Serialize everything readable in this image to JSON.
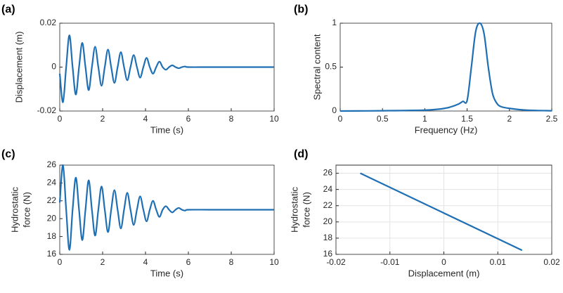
{
  "chart_data": [
    {
      "type": "line",
      "panel_label": "(a)",
      "xlabel": "Time (s)",
      "ylabel": "Displacement (m)",
      "color": "#1f6fb4",
      "grid": false,
      "xlim": [
        0,
        10
      ],
      "ylim": [
        -0.02,
        0.02
      ],
      "xticks": [
        0,
        2,
        4,
        6,
        8,
        10
      ],
      "yticks": [
        -0.02,
        0,
        0.02
      ],
      "x": [
        0,
        0.15,
        0.3,
        0.45,
        0.6,
        0.75,
        0.9,
        1.05,
        1.2,
        1.35,
        1.5,
        1.65,
        1.8,
        1.95,
        2.1,
        2.25,
        2.4,
        2.55,
        2.7,
        2.85,
        3,
        3.15,
        3.3,
        3.45,
        3.6,
        3.75,
        3.9,
        4.05,
        4.2,
        4.35,
        4.5,
        4.65,
        4.8,
        4.95,
        5.1,
        5.25,
        5.4,
        5.55,
        5.7,
        5.85,
        6,
        7,
        8,
        9,
        10
      ],
      "values": [
        -0.003,
        -0.016,
        0,
        0.0145,
        0,
        -0.0125,
        0,
        0.011,
        0,
        -0.0105,
        0,
        0.0093,
        0,
        -0.0085,
        0,
        0.008,
        0,
        -0.0072,
        0,
        0.0068,
        0,
        -0.006,
        0,
        0.0055,
        0,
        -0.0048,
        0,
        0.0042,
        0,
        -0.003,
        0,
        0.0025,
        0,
        -0.0012,
        0,
        0.0008,
        0,
        -0.0005,
        0,
        0.0003,
        0,
        0,
        0,
        0,
        0
      ]
    },
    {
      "type": "line",
      "panel_label": "(b)",
      "xlabel": "Frequency (Hz)",
      "ylabel": "Spectral content",
      "color": "#1f6fb4",
      "grid": false,
      "xlim": [
        0,
        2.5
      ],
      "ylim": [
        0,
        1
      ],
      "xticks": [
        0,
        0.5,
        1,
        1.5,
        2,
        2.5
      ],
      "yticks": [
        0,
        0.5,
        1
      ],
      "x": [
        0,
        0.5,
        1,
        1.2,
        1.3,
        1.4,
        1.45,
        1.5,
        1.55,
        1.6,
        1.65,
        1.7,
        1.75,
        1.8,
        1.85,
        1.9,
        2,
        2.2,
        2.5
      ],
      "values": [
        0,
        0.003,
        0.01,
        0.025,
        0.045,
        0.08,
        0.11,
        0.12,
        0.5,
        0.9,
        1,
        0.88,
        0.5,
        0.2,
        0.09,
        0.05,
        0.03,
        0.01,
        0.003
      ]
    },
    {
      "type": "line",
      "panel_label": "(c)",
      "xlabel": "Time (s)",
      "ylabel": [
        "Hydrostatic",
        "force (N)"
      ],
      "color": "#1f6fb4",
      "grid": false,
      "xlim": [
        0,
        10
      ],
      "ylim": [
        16,
        26
      ],
      "xticks": [
        0,
        2,
        4,
        6,
        8,
        10
      ],
      "yticks": [
        16,
        18,
        20,
        22,
        24,
        26
      ],
      "x": [
        0,
        0.15,
        0.3,
        0.45,
        0.6,
        0.75,
        0.9,
        1.05,
        1.2,
        1.35,
        1.5,
        1.65,
        1.8,
        1.95,
        2.1,
        2.25,
        2.4,
        2.55,
        2.7,
        2.85,
        3,
        3.15,
        3.3,
        3.45,
        3.6,
        3.75,
        3.9,
        4.05,
        4.2,
        4.35,
        4.5,
        4.65,
        4.8,
        4.95,
        5.1,
        5.25,
        5.4,
        5.55,
        5.7,
        5.85,
        6,
        7,
        8,
        9,
        10
      ],
      "values": [
        21.8,
        26,
        21,
        16.5,
        21,
        24.6,
        21,
        17.6,
        21,
        24.3,
        21,
        18.1,
        21,
        23.6,
        21,
        18.5,
        21,
        23.2,
        21,
        18.9,
        21,
        22.9,
        21,
        19.3,
        21,
        22.5,
        21,
        19.7,
        21,
        22,
        21,
        20.2,
        21,
        21.4,
        21,
        20.7,
        21,
        21.2,
        21,
        20.9,
        21,
        21,
        21,
        21,
        21
      ]
    },
    {
      "type": "line",
      "panel_label": "(d)",
      "xlabel": "Displacement (m)",
      "ylabel": [
        "Hydrostatic",
        "force (N)"
      ],
      "color": "#1f6fb4",
      "grid": true,
      "xlim": [
        -0.02,
        0.02
      ],
      "ylim": [
        16,
        27
      ],
      "xticks": [
        -0.02,
        -0.01,
        0,
        0.01,
        0.02
      ],
      "yticks": [
        16,
        18,
        20,
        22,
        24,
        26
      ],
      "x": [
        -0.0155,
        0.0145
      ],
      "values": [
        26,
        16.5
      ]
    }
  ]
}
